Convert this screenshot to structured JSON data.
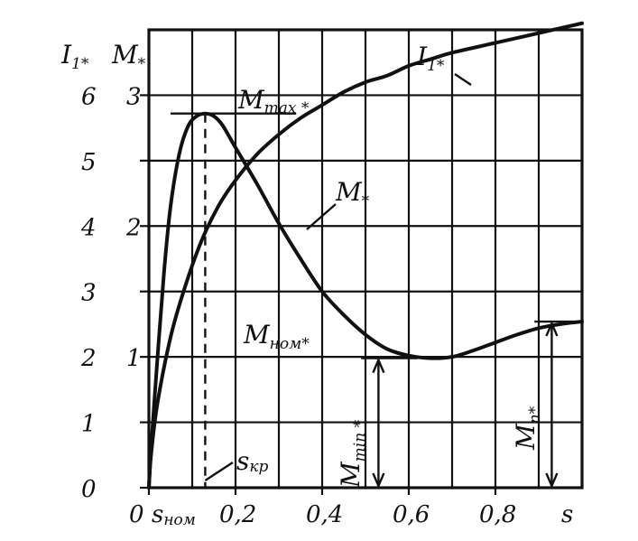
{
  "chart_data": {
    "type": "line",
    "xlabel": "s",
    "ylabels": {
      "left": {
        "main": "I",
        "sub": "1*"
      },
      "right": {
        "main": "M",
        "sub": "*"
      }
    },
    "x_ticks": [
      "0",
      "0,2",
      "0,4",
      "0,6",
      "0,8"
    ],
    "y_left_ticks": [
      "0",
      "1",
      "2",
      "3",
      "4",
      "5",
      "6"
    ],
    "y_right_ticks": [
      "1",
      "2",
      "3"
    ],
    "xlim": [
      0,
      1
    ],
    "ylim_left": [
      0,
      7
    ],
    "ylim_right": [
      0,
      3.5
    ],
    "grid": true,
    "series": [
      {
        "name": {
          "main": "I",
          "sub": "1*"
        },
        "axis": "left",
        "x": [
          0,
          0.005,
          0.02,
          0.05,
          0.08,
          0.12,
          0.16,
          0.2,
          0.25,
          0.3,
          0.35,
          0.4,
          0.45,
          0.5,
          0.55,
          0.6,
          0.65,
          0.7,
          0.8,
          0.9,
          1.0
        ],
        "y": [
          0,
          0.5,
          1.3,
          2.3,
          3.0,
          3.75,
          4.3,
          4.7,
          5.1,
          5.4,
          5.65,
          5.85,
          6.05,
          6.2,
          6.3,
          6.45,
          6.55,
          6.65,
          6.8,
          6.95,
          7.1
        ]
      },
      {
        "name": {
          "main": "M",
          "sub": "*"
        },
        "axis": "right",
        "x": [
          0,
          0.005,
          0.02,
          0.035,
          0.05,
          0.07,
          0.09,
          0.11,
          0.13,
          0.15,
          0.17,
          0.2,
          0.25,
          0.3,
          0.35,
          0.4,
          0.45,
          0.5,
          0.55,
          0.6,
          0.65,
          0.7,
          0.75,
          0.8,
          0.85,
          0.9,
          0.95,
          1.0
        ],
        "y": [
          0,
          0.3,
          1.0,
          1.65,
          2.15,
          2.55,
          2.76,
          2.84,
          2.86,
          2.84,
          2.77,
          2.6,
          2.32,
          2.02,
          1.75,
          1.5,
          1.32,
          1.17,
          1.06,
          1.01,
          0.99,
          1.0,
          1.05,
          1.11,
          1.17,
          1.22,
          1.25,
          1.27
        ]
      }
    ],
    "annotations": {
      "m_max": {
        "main": "M",
        "sub": "max *",
        "value": 2.86,
        "s": 0.13
      },
      "m_nom": {
        "main": "M",
        "sub": "ном*",
        "value": 1.0
      },
      "m_min": {
        "main": "M",
        "sub": "min *",
        "value": 0.99
      },
      "m_n": {
        "main": "M",
        "sub": "п*",
        "value": 1.27
      },
      "s_kr": {
        "main": "s",
        "sub": "кр",
        "value": 0.13
      },
      "s_nom": {
        "main": "s",
        "sub": "ном",
        "value": 0.02
      }
    }
  }
}
